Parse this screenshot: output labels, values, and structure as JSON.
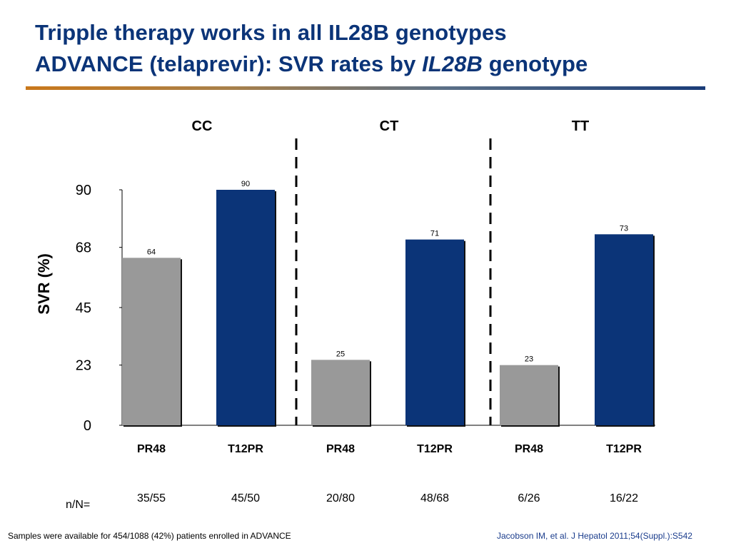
{
  "title": {
    "line1": "Tripple therapy works in all IL28B genotypes",
    "line2_prefix": "ADVANCE (telaprevir): SVR rates by ",
    "line2_italic": "IL28B",
    "line2_suffix": " genotype"
  },
  "chart_data": {
    "type": "bar",
    "ylabel": "SVR (%)",
    "ylim": [
      0,
      90
    ],
    "yticks": [
      "0",
      "23",
      "45",
      "68",
      "90"
    ],
    "groups": [
      {
        "name": "CC",
        "bars": [
          {
            "label": "PR48",
            "value": 64,
            "n": "35/55",
            "color": "#999999"
          },
          {
            "label": "T12PR",
            "value": 90,
            "n": "45/50",
            "color": "#0b3478"
          }
        ]
      },
      {
        "name": "CT",
        "bars": [
          {
            "label": "PR48",
            "value": 25,
            "n": "20/80",
            "color": "#999999"
          },
          {
            "label": "T12PR",
            "value": 71,
            "n": "48/68",
            "color": "#0b3478"
          }
        ]
      },
      {
        "name": "TT",
        "bars": [
          {
            "label": "PR48",
            "value": 23,
            "n": "6/26",
            "color": "#999999"
          },
          {
            "label": "T12PR",
            "value": 73,
            "n": "16/22",
            "color": "#0b3478"
          }
        ]
      }
    ],
    "n_label": "n/N=",
    "grid": false
  },
  "footnotes": {
    "left": "Samples were available for 454/1088 (42%) patients enrolled in ADVANCE",
    "right": "Jacobson IM, et al. J Hepatol 2011;54(Suppl.):S542"
  }
}
